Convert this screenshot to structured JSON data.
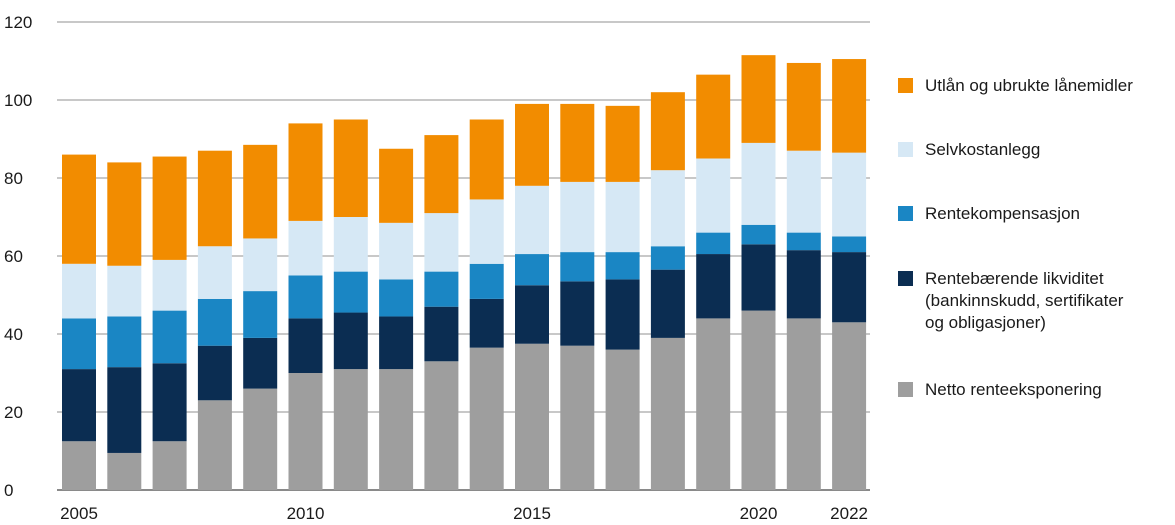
{
  "chart_data": {
    "type": "bar",
    "stacked": true,
    "title": "",
    "xlabel": "",
    "ylabel": "",
    "ylim": [
      0,
      120
    ],
    "yticks": [
      0,
      20,
      40,
      60,
      80,
      100,
      120
    ],
    "grid": true,
    "legend_position": "right",
    "categories": [
      "2005",
      "2006",
      "2007",
      "2008",
      "2009",
      "2010",
      "2011",
      "2012",
      "2013",
      "2014",
      "2015",
      "2016",
      "2017",
      "2018",
      "2019",
      "2020",
      "2021",
      "2022"
    ],
    "xtick_labels": [
      "2005",
      "",
      "",
      "",
      "",
      "2010",
      "",
      "",
      "",
      "",
      "2015",
      "",
      "",
      "",
      "",
      "2020",
      "",
      "2022"
    ],
    "series": [
      {
        "name": "Netto renteeksponering",
        "color": "#9e9e9e",
        "values": [
          12.5,
          9.5,
          12.5,
          23,
          26,
          30,
          31,
          31,
          33,
          36.5,
          37.5,
          37,
          36,
          39,
          44,
          46,
          44,
          43
        ]
      },
      {
        "name": "Rentebærende likviditet\n(bankinnskudd, sertifikater\nog obligasjoner)",
        "color": "#0b2d52",
        "values": [
          18.5,
          22,
          20,
          14,
          13,
          14,
          14.5,
          13.5,
          14,
          12.5,
          15,
          16.5,
          18,
          17.5,
          16.5,
          17,
          17.5,
          18
        ]
      },
      {
        "name": "Rentekompensasjon",
        "color": "#1a86c4",
        "values": [
          13,
          13,
          13.5,
          12,
          12,
          11,
          10.5,
          9.5,
          9,
          9,
          8,
          7.5,
          7,
          6,
          5.5,
          5,
          4.5,
          4
        ]
      },
      {
        "name": "Selvkostanlegg",
        "color": "#d6e8f5",
        "values": [
          14,
          13,
          13,
          13.5,
          13.5,
          14,
          14,
          14.5,
          15,
          16.5,
          17.5,
          18,
          18,
          19.5,
          19,
          21,
          21,
          21.5
        ]
      },
      {
        "name": "Utlån og ubrukte lånemidler",
        "color": "#f28c00",
        "values": [
          28,
          26.5,
          26.5,
          24.5,
          24,
          25,
          25,
          19,
          20,
          20.5,
          21,
          20,
          19.5,
          20,
          21.5,
          22.5,
          22.5,
          24
        ]
      }
    ]
  },
  "legend": {
    "items": [
      {
        "label": "Utlån og ubrukte lånemidler",
        "color": "#f28c00"
      },
      {
        "label": "Selvkostanlegg",
        "color": "#d6e8f5"
      },
      {
        "label": "Rentekompensasjon",
        "color": "#1a86c4"
      },
      {
        "label": "Rentebærende likviditet\n(bankinnskudd, sertifikater\nog obligasjoner)",
        "color": "#0b2d52"
      },
      {
        "label": "Netto renteeksponering",
        "color": "#9e9e9e"
      }
    ]
  }
}
